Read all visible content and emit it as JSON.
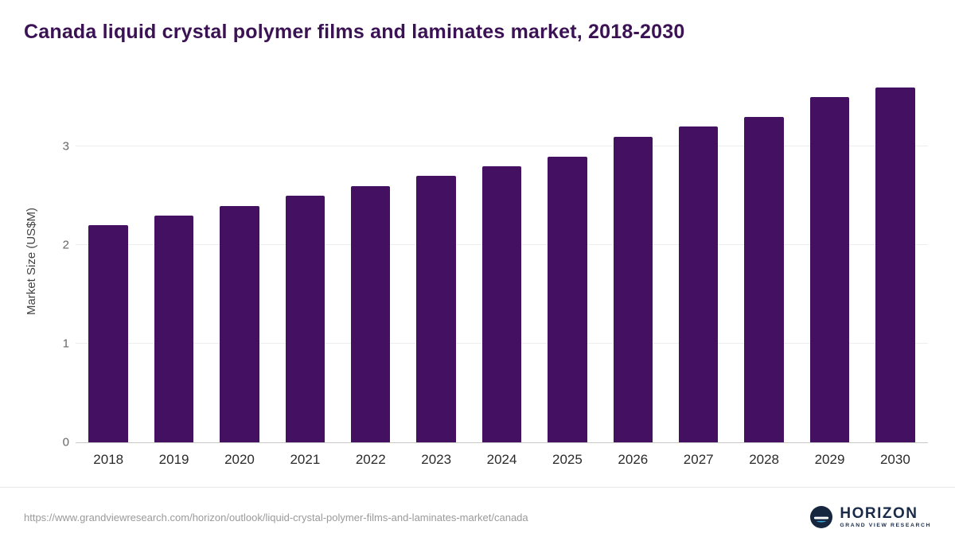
{
  "title": "Canada liquid crystal polymer films and laminates market, 2018-2030",
  "chart_data": {
    "type": "bar",
    "categories": [
      "2018",
      "2019",
      "2020",
      "2021",
      "2022",
      "2023",
      "2024",
      "2025",
      "2026",
      "2027",
      "2028",
      "2029",
      "2030"
    ],
    "values": [
      2.2,
      2.3,
      2.4,
      2.5,
      2.6,
      2.7,
      2.8,
      2.9,
      3.1,
      3.2,
      3.3,
      3.5,
      3.6
    ],
    "title": "Canada liquid crystal polymer films and laminates market, 2018-2030",
    "xlabel": "",
    "ylabel": "Market Size (US$M)",
    "yticks": [
      0,
      1,
      2,
      3
    ],
    "ylim": [
      0,
      3.68
    ],
    "grid": true,
    "legend": false,
    "bar_color": "#431062"
  },
  "colors": {
    "title": "#3b1254",
    "bar": "#431062",
    "gridline": "#ededed"
  },
  "footer": {
    "source_url": "https://www.grandviewresearch.com/horizon/outlook/liquid-crystal-polymer-films-and-laminates-market/canada",
    "logo": {
      "name": "HORIZON",
      "tagline": "GRAND VIEW RESEARCH"
    }
  }
}
